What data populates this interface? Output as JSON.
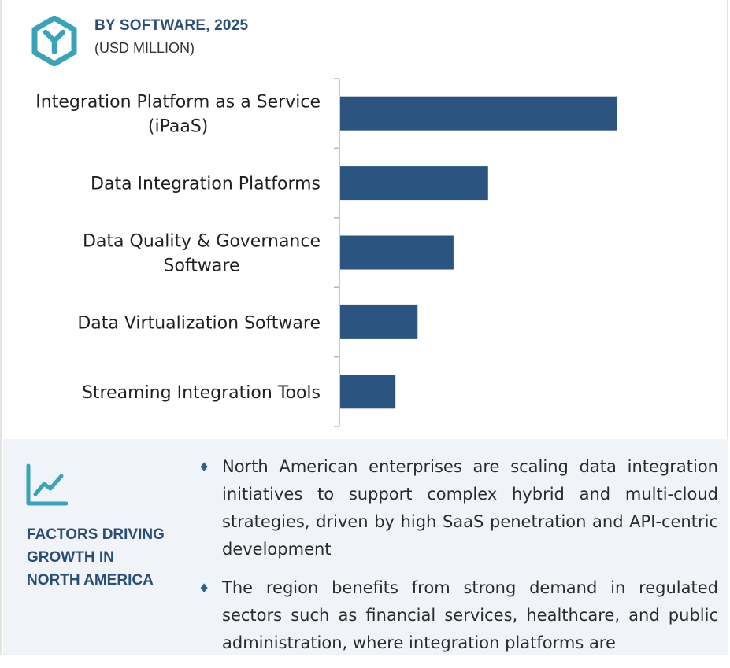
{
  "header": {
    "title": "BY SOFTWARE, 2025",
    "subtitle": "(USD MILLION)",
    "logo_icon": "hexagon-y-logo-icon",
    "brand_color": "#2a4e78",
    "accent_color": "#3aa3b8"
  },
  "chart_data": {
    "type": "bar",
    "orientation": "horizontal",
    "title": "BY SOFTWARE, 2025",
    "unit": "(USD MILLION)",
    "categories": [
      "Integration Platform as a Service (iPaaS)",
      "Data Integration Platforms",
      "Data Quality & Governance Software",
      "Data Virtualization Software",
      "Streaming Integration Tools"
    ],
    "category_lines": [
      [
        "Integration Platform as a Service",
        "(iPaaS)"
      ],
      [
        "Data Integration Platforms"
      ],
      [
        "Data Quality & Governance",
        "Software"
      ],
      [
        "Data Virtualization Software"
      ],
      [
        "Streaming Integration Tools"
      ]
    ],
    "values": [
      100,
      53.5,
      41,
      28,
      20
    ],
    "xlim": [
      0,
      100
    ],
    "bar_color": "#2b5580",
    "grid": false,
    "value_labels_shown": false
  },
  "factors": {
    "icon": "trend-line-chart-icon",
    "title_lines": [
      "FACTORS DRIVING",
      "GROWTH IN",
      "NORTH AMERICA"
    ],
    "bullets": [
      "North American enterprises are scaling data integration initiatives to support complex hybrid and multi-cloud strategies, driven by high SaaS penetration and API-centric development",
      "The region benefits from strong demand in regulated sectors such as financial services, healthcare, and public administration, where integration platforms are"
    ],
    "bullet_mark": "♦",
    "panel_bg": "#f0f3f7"
  }
}
